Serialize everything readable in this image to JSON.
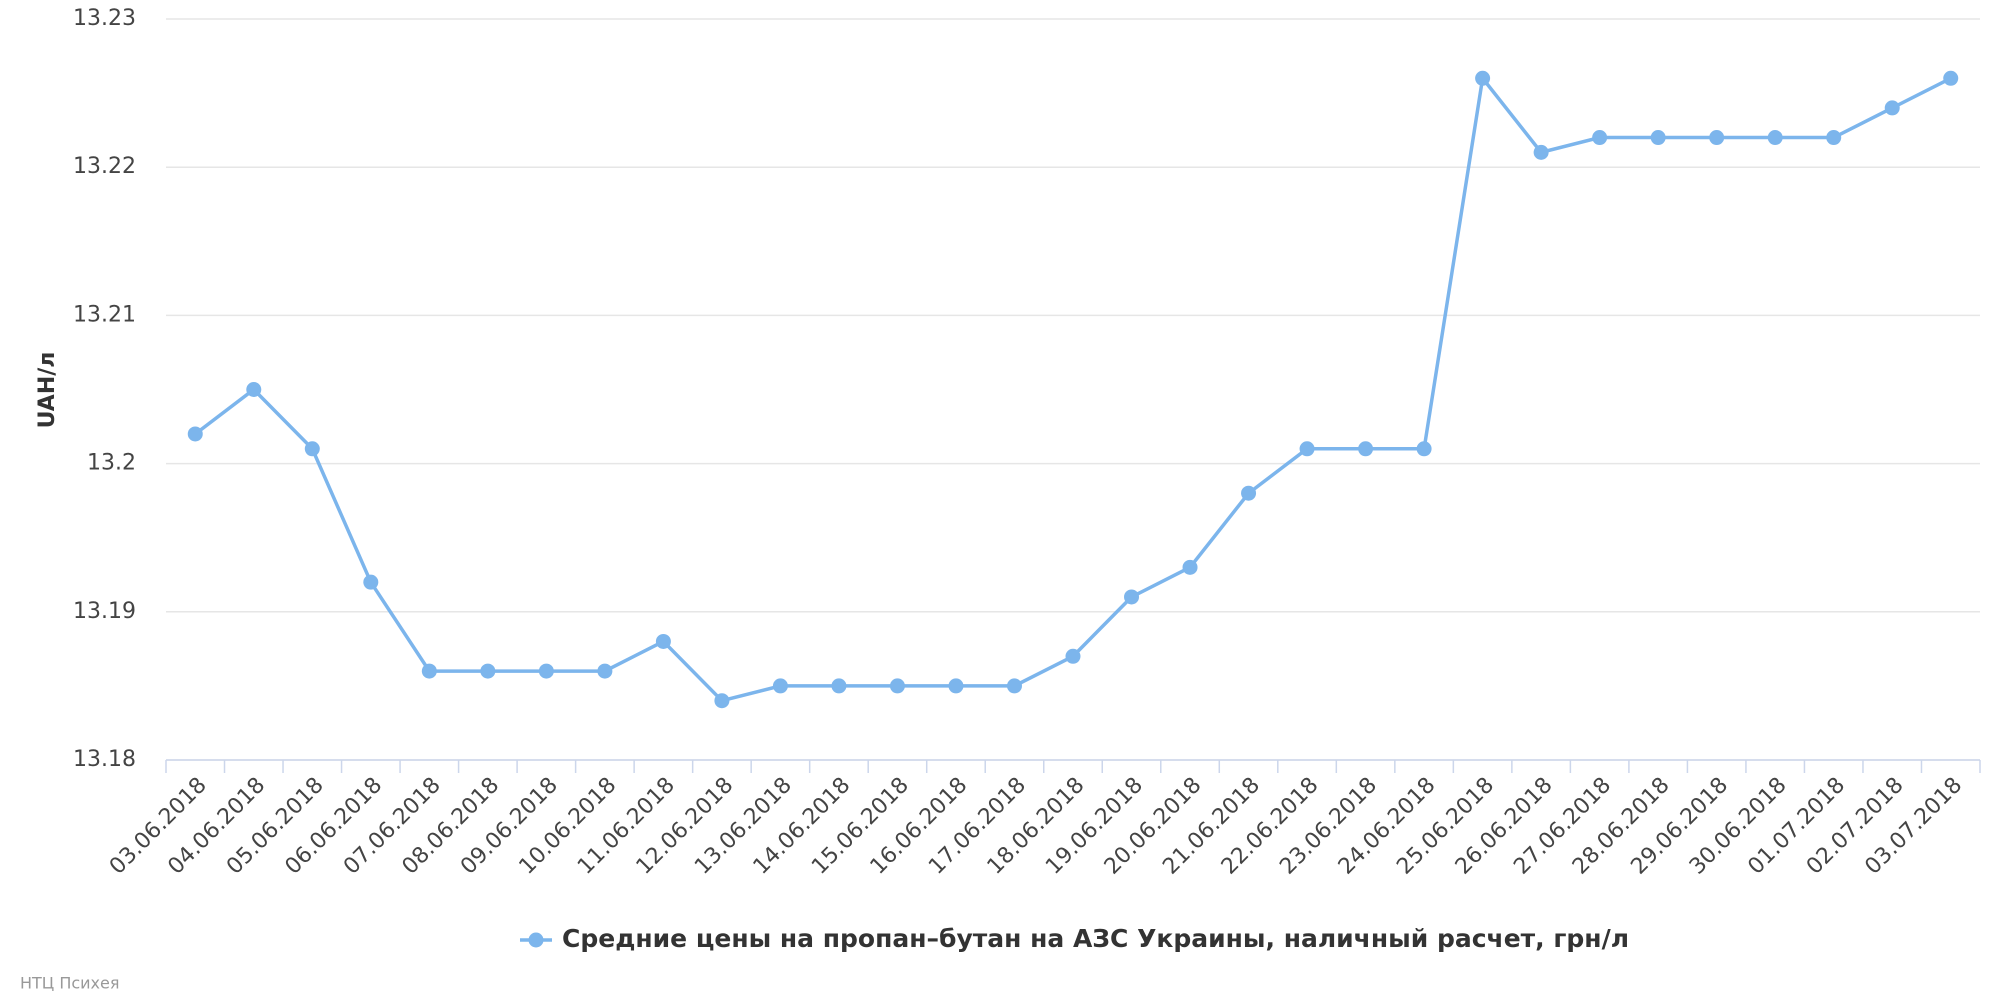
{
  "chart_data": {
    "type": "line",
    "y_label": "UAH/л",
    "categories": [
      "03.06.2018",
      "04.06.2018",
      "05.06.2018",
      "06.06.2018",
      "07.06.2018",
      "08.06.2018",
      "09.06.2018",
      "10.06.2018",
      "11.06.2018",
      "12.06.2018",
      "13.06.2018",
      "14.06.2018",
      "15.06.2018",
      "16.06.2018",
      "17.06.2018",
      "18.06.2018",
      "19.06.2018",
      "20.06.2018",
      "21.06.2018",
      "22.06.2018",
      "23.06.2018",
      "24.06.2018",
      "25.06.2018",
      "26.06.2018",
      "27.06.2018",
      "28.06.2018",
      "29.06.2018",
      "30.06.2018",
      "01.07.2018",
      "02.07.2018",
      "03.07.2018"
    ],
    "series": [
      {
        "name": "Средние цены на пропан–бутан на АЗС Украины, наличный расчет, грн/л",
        "color": "#7cb5ec",
        "values": [
          13.202,
          13.205,
          13.201,
          13.192,
          13.186,
          13.186,
          13.186,
          13.186,
          13.188,
          13.184,
          13.185,
          13.185,
          13.185,
          13.185,
          13.185,
          13.187,
          13.191,
          13.193,
          13.198,
          13.201,
          13.201,
          13.201,
          13.226,
          13.221,
          13.222,
          13.222,
          13.222,
          13.222,
          13.222,
          13.224,
          13.226
        ]
      }
    ],
    "ylim": [
      13.18,
      13.23
    ],
    "yticks": [
      13.18,
      13.19,
      13.2,
      13.21,
      13.22,
      13.23
    ],
    "grid": true,
    "credit": "НТЦ Психея"
  }
}
